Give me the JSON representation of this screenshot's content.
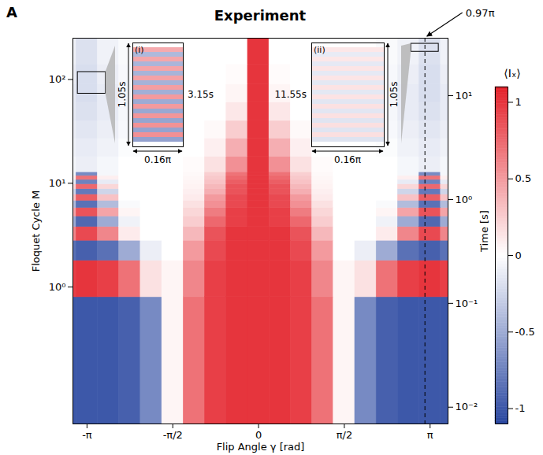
{
  "chart_data": {
    "type": "heatmap",
    "panel": "A",
    "title": "Experiment",
    "x_label": "Flip Angle γ [rad]",
    "y_label": "Floquet Cycle M",
    "y2_label": "Time [s]",
    "log": "y",
    "xlim": [
      -3.4,
      3.47
    ],
    "xticks": [
      {
        "value": -3.1416,
        "label": "-π"
      },
      {
        "value": -1.5708,
        "label": "-π/2"
      },
      0,
      {
        "value": 1.5708,
        "label": "π/2"
      },
      {
        "value": 3.1416,
        "label": "π"
      }
    ],
    "ylim": [
      0.048,
      250
    ],
    "yticks": [
      {
        "value": 1,
        "label": "10⁰"
      },
      {
        "value": 10,
        "label": "10¹"
      },
      {
        "value": 100,
        "label": "10²"
      }
    ],
    "y2lim": [
      0.0069,
      35.8
    ],
    "y2ticks": [
      {
        "value": 0.01,
        "label": "10⁻²"
      },
      {
        "value": 0.1,
        "label": "10⁻¹"
      },
      {
        "value": 1,
        "label": "10⁰"
      },
      {
        "value": 10,
        "label": "10¹"
      }
    ],
    "gamma_edges": [
      -3.731,
      -3.338,
      -2.945,
      -2.553,
      -2.16,
      -1.767,
      -1.374,
      -0.982,
      -0.589,
      -0.196,
      0.196,
      0.589,
      0.982,
      1.374,
      1.767,
      2.16,
      2.553,
      2.945,
      3.338,
      3.731
    ],
    "M_edges": [
      0.045,
      0.8,
      1.8,
      2.8,
      3.8,
      4.8,
      5.8,
      6.8,
      7.8,
      8.8,
      9.8,
      10.8,
      11.8,
      12.8,
      18,
      27,
      40,
      60,
      90,
      140,
      260
    ],
    "cells": [
      [
        -1,
        -1,
        -1,
        -0.95,
        -0.7,
        0.05,
        0.7,
        0.95,
        1,
        1,
        1,
        0.95,
        0.7,
        0.05,
        -0.7,
        -0.95,
        -1,
        -1,
        -1
      ],
      [
        0.95,
        1,
        0.95,
        0.7,
        0.15,
        0.05,
        0.6,
        0.95,
        1,
        1,
        1,
        0.95,
        0.6,
        0.05,
        0.15,
        0.7,
        0.95,
        1,
        0.95
      ],
      [
        -0.85,
        -0.95,
        -0.85,
        -0.5,
        -0.1,
        0,
        0.5,
        0.9,
        1,
        1,
        1,
        0.9,
        0.5,
        0,
        -0.1,
        -0.5,
        -0.85,
        -0.95,
        -0.85
      ],
      [
        0.6,
        0.9,
        0.6,
        0.1,
        0,
        0,
        0.35,
        0.85,
        1,
        1,
        1,
        0.85,
        0.35,
        0,
        0,
        0.1,
        0.6,
        0.9,
        0.6
      ],
      [
        -0.5,
        -0.9,
        -0.5,
        -0.08,
        0,
        0,
        0.25,
        0.75,
        0.95,
        1,
        0.95,
        0.75,
        0.25,
        0,
        0,
        -0.08,
        -0.5,
        -0.9,
        -0.5
      ],
      [
        0.45,
        0.85,
        0.45,
        0.05,
        0,
        0,
        0.2,
        0.65,
        0.95,
        1,
        0.95,
        0.65,
        0.2,
        0,
        0,
        0.05,
        0.45,
        0.85,
        0.45
      ],
      [
        -0.4,
        -0.85,
        -0.4,
        -0.03,
        0,
        0,
        0.15,
        0.55,
        0.9,
        1,
        0.9,
        0.55,
        0.15,
        0,
        0,
        -0.03,
        -0.4,
        -0.85,
        -0.4
      ],
      [
        0.3,
        0.8,
        0.3,
        0,
        0,
        0,
        0.1,
        0.5,
        0.9,
        1,
        0.9,
        0.5,
        0.1,
        0,
        0,
        0,
        0.3,
        0.8,
        0.3
      ],
      [
        -0.25,
        -0.8,
        -0.25,
        0,
        0,
        0,
        0.08,
        0.4,
        0.85,
        1,
        0.85,
        0.4,
        0.08,
        0,
        0,
        0,
        -0.25,
        -0.8,
        -0.25
      ],
      [
        0.2,
        0.75,
        0.2,
        0,
        0,
        0,
        0.06,
        0.35,
        0.85,
        1,
        0.85,
        0.35,
        0.06,
        0,
        0,
        0,
        0.2,
        0.75,
        0.2
      ],
      [
        -0.12,
        -0.75,
        -0.12,
        0,
        0,
        0,
        0.05,
        0.3,
        0.8,
        1,
        0.8,
        0.3,
        0.05,
        0,
        0,
        0,
        -0.12,
        -0.75,
        -0.12
      ],
      [
        0.08,
        0.7,
        0.08,
        0,
        0,
        0,
        0.04,
        0.27,
        0.75,
        1,
        0.75,
        0.27,
        0.04,
        0,
        0,
        0,
        0.08,
        0.7,
        0.08
      ],
      [
        -0.05,
        -0.7,
        -0.05,
        0,
        0,
        0,
        0.03,
        0.24,
        0.7,
        1,
        0.7,
        0.24,
        0.03,
        0,
        0,
        0,
        -0.05,
        -0.7,
        -0.05
      ],
      [
        -0.05,
        -0.1,
        -0.05,
        0,
        0,
        0,
        0.02,
        0.15,
        0.55,
        1,
        0.55,
        0.15,
        0.02,
        0,
        0,
        0,
        -0.05,
        -0.1,
        -0.05
      ],
      [
        -0.08,
        -0.12,
        -0.08,
        -0.02,
        0,
        0,
        0,
        0.08,
        0.4,
        1,
        0.4,
        0.08,
        0,
        0,
        0,
        -0.02,
        -0.08,
        -0.12,
        -0.08
      ],
      [
        -0.1,
        -0.15,
        -0.1,
        -0.04,
        0,
        0,
        0,
        0.03,
        0.25,
        1,
        0.25,
        0.03,
        0,
        0,
        0,
        -0.04,
        -0.1,
        -0.15,
        -0.1
      ],
      [
        -0.12,
        -0.18,
        -0.12,
        -0.05,
        0,
        0,
        0,
        0,
        0.12,
        1,
        0.12,
        0,
        0,
        0,
        0,
        -0.05,
        -0.12,
        -0.18,
        -0.12
      ],
      [
        -0.12,
        -0.2,
        -0.12,
        -0.05,
        0,
        0,
        0,
        0,
        0.05,
        1,
        0.05,
        0,
        0,
        0,
        0,
        -0.05,
        -0.12,
        -0.2,
        -0.12
      ],
      [
        -0.1,
        -0.2,
        -0.1,
        -0.04,
        0,
        0,
        0,
        0,
        0.02,
        1,
        0.02,
        0,
        0,
        0,
        0,
        -0.04,
        -0.1,
        -0.2,
        -0.1
      ],
      [
        -0.08,
        -0.18,
        -0.08,
        -0.03,
        0,
        0,
        0,
        0,
        0,
        1,
        0,
        0,
        0,
        0,
        0,
        -0.03,
        -0.08,
        -0.18,
        -0.08
      ]
    ],
    "colorbar": {
      "label": "⟨Iₓ⟩",
      "range": [
        -1.1,
        1.1
      ],
      "ticks": [
        1,
        0.5,
        0,
        -0.5,
        -1
      ],
      "colors": [
        "#2a47a0",
        "#ffffff",
        "#e4212a"
      ]
    },
    "dashed_line": {
      "value": 3.047,
      "label": "0.97π"
    },
    "insets": [
      {
        "label": "(i)",
        "height_label": "1.05s",
        "width_label": "0.16π",
        "time_label": "3.15s",
        "gamma": [
          -3.311,
          -2.799
        ],
        "M": [
          73,
          118
        ],
        "values": [
          0.42,
          -0.42,
          0.44,
          -0.44,
          0.45,
          -0.45,
          0.46,
          -0.46,
          0.48,
          -0.48,
          0.5,
          -0.5,
          0.5,
          -0.52,
          0.52,
          -0.54,
          0.54,
          -0.55,
          0.55,
          -0.56
        ]
      },
      {
        "label": "(ii)",
        "height_label": "1.05s",
        "width_label": "0.16π",
        "time_label": "11.55s",
        "gamma": [
          2.796,
          3.299
        ],
        "M": [
          185,
          221
        ],
        "values": [
          0.12,
          -0.12,
          0.12,
          -0.13,
          0.13,
          -0.13,
          0.13,
          -0.14,
          0.14,
          -0.14,
          0.14,
          -0.15,
          0.15,
          -0.15,
          0.15,
          -0.16,
          0.16,
          -0.16,
          0.16,
          -0.17
        ]
      }
    ]
  }
}
